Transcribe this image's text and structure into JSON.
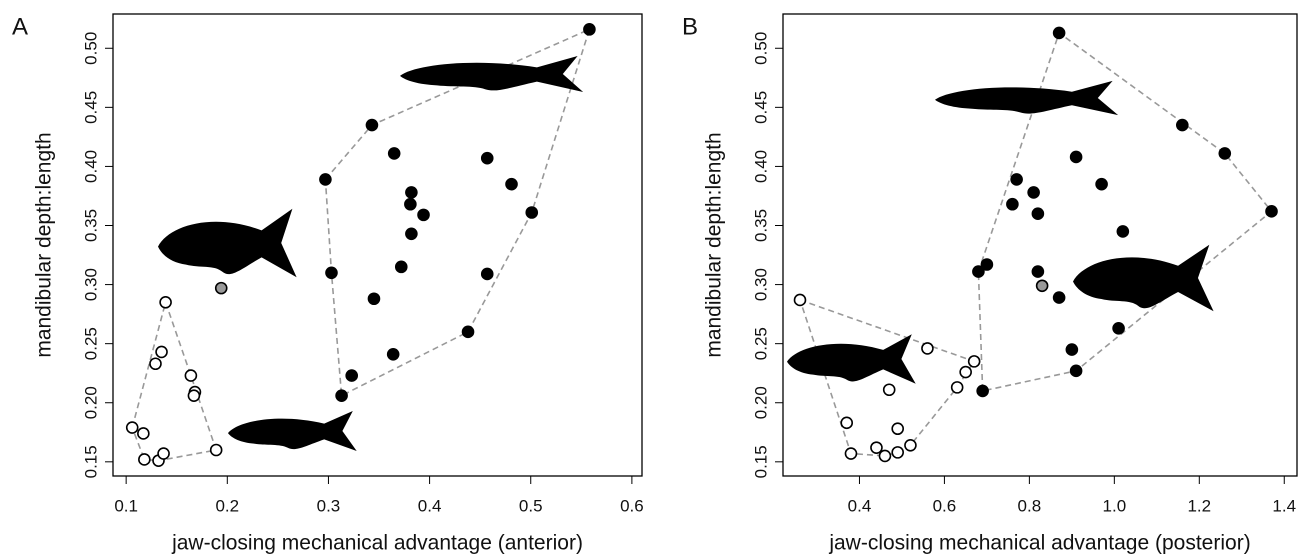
{
  "chart_data": [
    {
      "type": "scatter",
      "panel_label": "A",
      "xlabel": "jaw-closing mechanical advantage (anterior)",
      "ylabel": "mandibular depth:length",
      "xlim": [
        0.087,
        0.61
      ],
      "xticks": [
        0.1,
        0.2,
        0.3,
        0.4,
        0.5,
        0.6
      ],
      "ylim": [
        0.138,
        0.529
      ],
      "yticks": [
        0.15,
        {
          "value": 0.2,
          "label": "0.20"
        },
        0.25,
        {
          "value": 0.3,
          "label": "0.30"
        },
        0.35,
        {
          "value": 0.4,
          "label": "0.40"
        },
        0.45,
        {
          "value": 0.5,
          "label": "0.50"
        }
      ],
      "series": [
        {
          "color": "#000000",
          "marker": "filled",
          "hull": true,
          "x": [
            0.558,
            0.343,
            0.297,
            0.365,
            0.457,
            0.481,
            0.382,
            0.381,
            0.394,
            0.382,
            0.501,
            0.303,
            0.372,
            0.457,
            0.345,
            0.438,
            0.364,
            0.323,
            0.313
          ],
          "values": [
            0.516,
            0.435,
            0.389,
            0.411,
            0.407,
            0.385,
            0.378,
            0.368,
            0.359,
            0.343,
            0.361,
            0.31,
            0.315,
            0.309,
            0.288,
            0.26,
            0.241,
            0.223,
            0.206
          ]
        },
        {
          "color": "#ffffff",
          "marker": "open",
          "hull": true,
          "x": [
            0.139,
            0.135,
            0.129,
            0.164,
            0.168,
            0.167,
            0.106,
            0.117,
            0.118,
            0.132,
            0.137,
            0.189
          ],
          "values": [
            0.285,
            0.243,
            0.233,
            0.223,
            0.209,
            0.206,
            0.179,
            0.174,
            0.152,
            0.151,
            0.157,
            0.16
          ]
        },
        {
          "color": "#999999",
          "marker": "filled",
          "hull": false,
          "x": [
            0.194
          ],
          "values": [
            0.297
          ]
        }
      ]
    },
    {
      "type": "scatter",
      "panel_label": "B",
      "xlabel": "jaw-closing mechanical advantage (posterior)",
      "ylabel": "mandibular depth:length",
      "xlim": [
        0.22,
        1.43
      ],
      "xticks": [
        0.4,
        0.6,
        0.8,
        {
          "value": 1.0,
          "label": "1.0"
        },
        1.2,
        1.4
      ],
      "ylim": [
        0.138,
        0.529
      ],
      "yticks": [
        0.15,
        {
          "value": 0.2,
          "label": "0.20"
        },
        0.25,
        {
          "value": 0.3,
          "label": "0.30"
        },
        0.35,
        {
          "value": 0.4,
          "label": "0.40"
        },
        0.45,
        {
          "value": 0.5,
          "label": "0.50"
        }
      ],
      "series": [
        {
          "color": "#000000",
          "marker": "filled",
          "hull": true,
          "x": [
            0.87,
            1.16,
            1.26,
            1.37,
            0.91,
            0.97,
            0.77,
            0.81,
            0.76,
            0.82,
            1.02,
            0.68,
            0.7,
            0.82,
            0.87,
            1.01,
            0.9,
            0.91,
            0.69
          ],
          "values": [
            0.513,
            0.435,
            0.411,
            0.362,
            0.408,
            0.385,
            0.389,
            0.378,
            0.368,
            0.36,
            0.345,
            0.311,
            0.317,
            0.311,
            0.289,
            0.263,
            0.245,
            0.227,
            0.21
          ]
        },
        {
          "color": "#ffffff",
          "marker": "open",
          "hull": true,
          "x": [
            0.26,
            0.56,
            0.67,
            0.65,
            0.63,
            0.47,
            0.37,
            0.49,
            0.38,
            0.44,
            0.46,
            0.49,
            0.52
          ],
          "values": [
            0.287,
            0.246,
            0.235,
            0.226,
            0.213,
            0.211,
            0.183,
            0.178,
            0.157,
            0.162,
            0.155,
            0.158,
            0.164
          ]
        },
        {
          "color": "#999999",
          "marker": "filled",
          "hull": false,
          "x": [
            0.83
          ],
          "values": [
            0.299
          ]
        }
      ]
    }
  ]
}
